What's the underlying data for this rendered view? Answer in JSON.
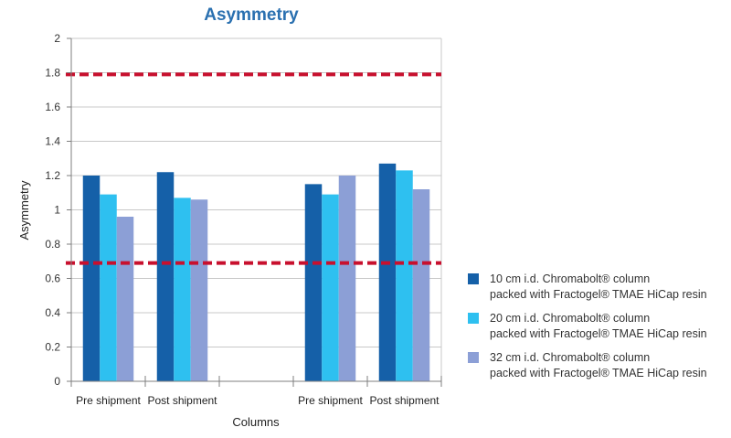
{
  "chart_data": {
    "type": "bar",
    "title": "Asymmetry",
    "xlabel": "Columns",
    "ylabel": "Asymmetry",
    "ylim": [
      0,
      2
    ],
    "yticks": [
      "0",
      "0.2",
      "0.4",
      "0.6",
      "0.8",
      "1",
      "1.2",
      "1.4",
      "1.6",
      "1.8",
      "2"
    ],
    "grid": true,
    "legend_position": "right",
    "categories": [
      "Pre shipment",
      "Post shipment",
      "",
      "Pre shipment",
      "Post shipment"
    ],
    "series": [
      {
        "name_lines": [
          "10 cm i.d. Chromabolt® column",
          "packed with Fractogel® TMAE HiCap resin"
        ],
        "color": "#1560a8",
        "values": [
          1.2,
          1.22,
          null,
          1.15,
          1.27
        ]
      },
      {
        "name_lines": [
          "20 cm i.d. Chromabolt® column",
          "packed with Fractogel® TMAE HiCap resin"
        ],
        "color": "#2ec0f0",
        "values": [
          1.09,
          1.07,
          null,
          1.09,
          1.23
        ]
      },
      {
        "name_lines": [
          "32 cm i.d. Chromabolt® column",
          "packed with Fractogel® TMAE HiCap resin"
        ],
        "color": "#8c9fd6",
        "values": [
          0.96,
          1.06,
          null,
          1.2,
          1.12
        ]
      }
    ],
    "reference_lines": [
      {
        "y": 1.79,
        "color": "#c8102e",
        "style": "dashed"
      },
      {
        "y": 0.69,
        "color": "#c8102e",
        "style": "dashed"
      }
    ]
  }
}
